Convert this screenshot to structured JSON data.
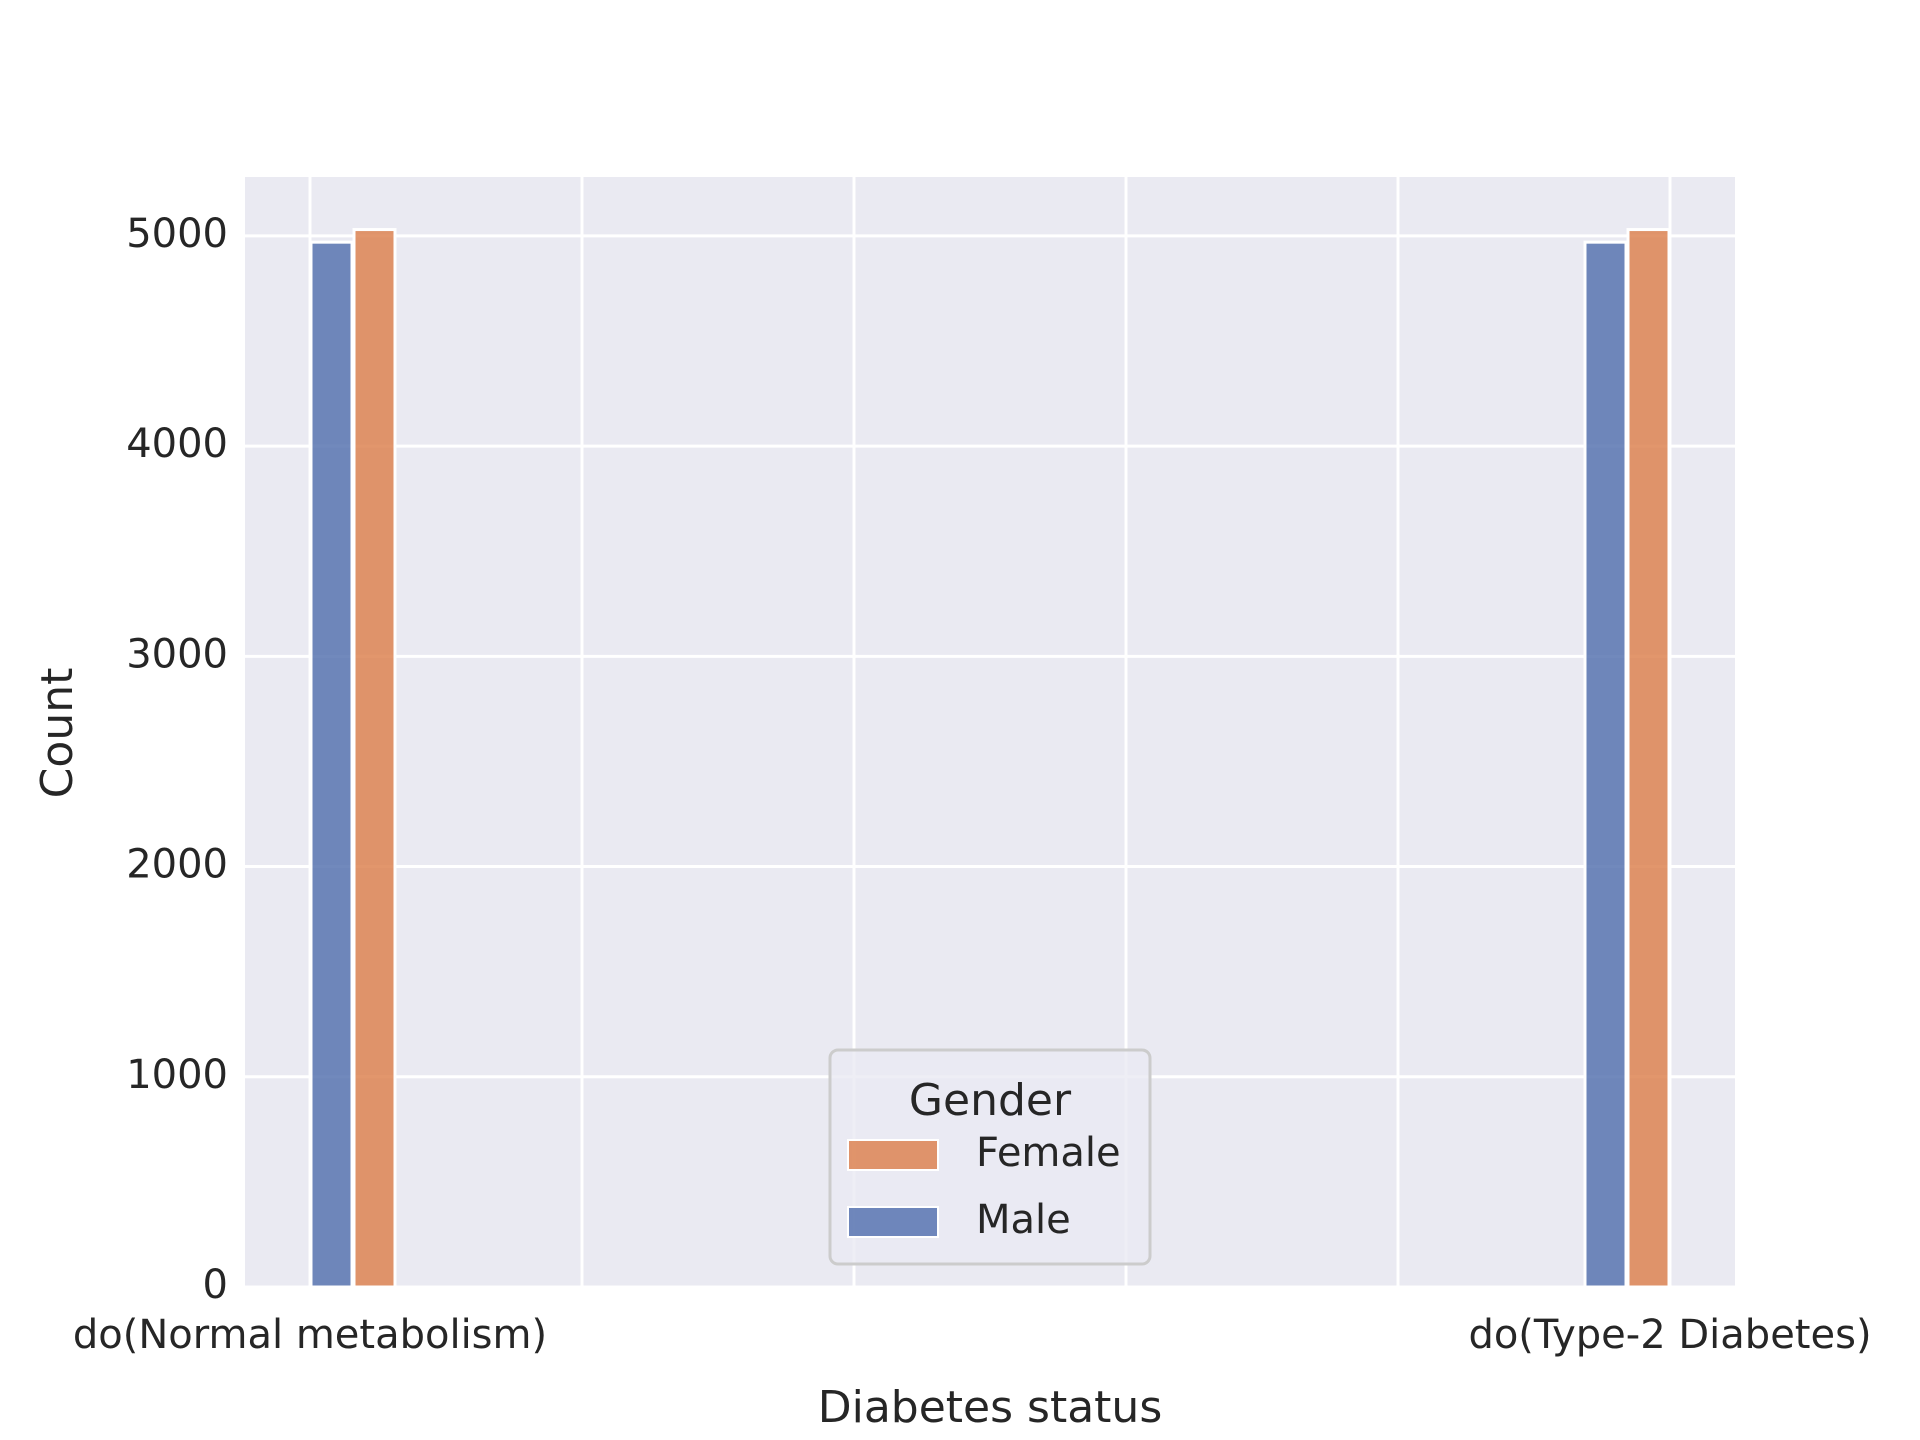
{
  "chart_data": {
    "type": "bar",
    "xlabel": "Diabetes status",
    "ylabel": "Count",
    "ylim": [
      0,
      5280
    ],
    "yticks": [
      0,
      1000,
      2000,
      3000,
      4000,
      5000
    ],
    "categories": [
      "do(Normal metabolism)",
      "do(Type-2 Diabetes)"
    ],
    "series": [
      {
        "name": "Male",
        "values": [
          4970,
          4970
        ],
        "color": "#5874b0"
      },
      {
        "name": "Female",
        "values": [
          5030,
          5030
        ],
        "color": "#dd8452"
      }
    ],
    "legend": {
      "title": "Gender",
      "placement": "lower-center",
      "order": [
        "Female",
        "Male"
      ]
    },
    "grid": true,
    "background": "#eaeaf2",
    "grid_color": "#ffffff"
  }
}
